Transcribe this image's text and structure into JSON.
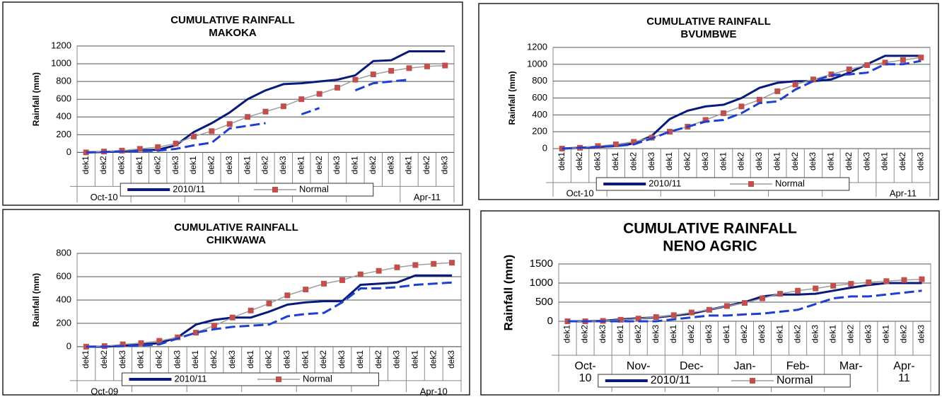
{
  "chart_data": [
    {
      "type": "line",
      "title": "CUMULATIVE RAINFALL",
      "subtitle": "MAKOKA",
      "ylabel": "Rainfall (mm)",
      "categories": [
        "dek1",
        "dek2",
        "dek3",
        "dek1",
        "dek2",
        "dek3",
        "dek1",
        "dek2",
        "dek3",
        "dek1",
        "dek2",
        "dek3",
        "dek1",
        "dek2",
        "dek3",
        "dek1",
        "dek2",
        "dek3",
        "dek1",
        "dek2",
        "dek3"
      ],
      "months": [
        "Oct-10",
        null,
        null,
        null,
        null,
        null,
        "Apr-11"
      ],
      "ylim": [
        0,
        1200
      ],
      "yticks": [
        0,
        200,
        400,
        600,
        800,
        1000,
        1200
      ],
      "grid": true,
      "series": [
        {
          "name": "2010/11",
          "color": "#0a1a7a",
          "values": [
            0,
            5,
            15,
            25,
            30,
            80,
            230,
            330,
            450,
            600,
            700,
            770,
            780,
            800,
            820,
            870,
            1030,
            1040,
            1140,
            1140,
            1140
          ]
        },
        {
          "name": "Normal",
          "color": "#9e9e9e",
          "marker": "square",
          "marker_color": "#c0504d",
          "values": [
            0,
            10,
            20,
            40,
            60,
            100,
            180,
            240,
            320,
            400,
            460,
            520,
            600,
            660,
            730,
            820,
            880,
            920,
            950,
            970,
            980
          ]
        },
        {
          "color": "#1f3fd0",
          "dash": true,
          "values": [
            0,
            5,
            10,
            15,
            20,
            40,
            80,
            110,
            270,
            300,
            330,
            null,
            430,
            500,
            null,
            700,
            780,
            800,
            820,
            null,
            1000
          ]
        }
      ]
    },
    {
      "type": "line",
      "title": "CUMULATIVE RAINFALL",
      "subtitle": "BVUMBWE",
      "ylabel": "Rainfall (mm)",
      "categories": [
        "dek1",
        "dek2",
        "dek3",
        "dek1",
        "dek2",
        "dek3",
        "dek1",
        "dek2",
        "dek3",
        "dek1",
        "dek2",
        "dek3",
        "dek1",
        "dek2",
        "dek3",
        "dek1",
        "dek2",
        "dek3",
        "dek1",
        "dek2",
        "dek3"
      ],
      "months": [
        "Oct-10",
        null,
        null,
        null,
        null,
        null,
        "Apr-11"
      ],
      "ylim": [
        0,
        1200
      ],
      "yticks": [
        0,
        200,
        400,
        600,
        800,
        1000,
        1200
      ],
      "grid": true,
      "series": [
        {
          "name": "2010/11",
          "color": "#0a1a7a",
          "values": [
            0,
            10,
            20,
            30,
            60,
            150,
            350,
            450,
            500,
            520,
            600,
            720,
            780,
            800,
            800,
            820,
            900,
            1000,
            1100,
            1100,
            1100
          ]
        },
        {
          "name": "Normal",
          "color": "#9e9e9e",
          "marker": "square",
          "marker_color": "#c0504d",
          "values": [
            0,
            10,
            30,
            50,
            80,
            130,
            200,
            260,
            340,
            420,
            500,
            580,
            680,
            760,
            820,
            880,
            940,
            990,
            1020,
            1050,
            1080
          ]
        },
        {
          "color": "#1f3fd0",
          "dash": true,
          "values": [
            0,
            10,
            20,
            30,
            50,
            120,
            200,
            260,
            320,
            340,
            420,
            540,
            560,
            700,
            800,
            870,
            880,
            900,
            1000,
            1000,
            1040
          ]
        }
      ]
    },
    {
      "type": "line",
      "title": "CUMULATIVE RAINFALL",
      "subtitle": "CHIKWAWA",
      "ylabel": "Rainfall (mm)",
      "categories": [
        "dek1",
        "dek2",
        "dek3",
        "dek1",
        "dek2",
        "dek3",
        "dek1",
        "dek2",
        "dek3",
        "dek1",
        "dek2",
        "dek3",
        "dek1",
        "dek2",
        "dek3",
        "dek1",
        "dek2",
        "dek3",
        "dek1",
        "dek2",
        "dek3"
      ],
      "months": [
        "Oct-09",
        null,
        null,
        null,
        null,
        null,
        "Apr-10"
      ],
      "ylim": [
        0,
        800
      ],
      "yticks": [
        0,
        200,
        400,
        600,
        800
      ],
      "grid": true,
      "series": [
        {
          "name": "2010/11",
          "color": "#0a1a7a",
          "values": [
            0,
            0,
            10,
            20,
            30,
            80,
            190,
            230,
            250,
            250,
            300,
            360,
            380,
            390,
            390,
            530,
            540,
            550,
            610,
            610,
            610
          ]
        },
        {
          "name": "Normal",
          "color": "#9e9e9e",
          "marker": "square",
          "marker_color": "#c0504d",
          "values": [
            0,
            5,
            20,
            30,
            50,
            80,
            120,
            180,
            250,
            310,
            370,
            440,
            490,
            540,
            570,
            620,
            650,
            680,
            700,
            710,
            720
          ]
        },
        {
          "color": "#1f3fd0",
          "dash": true,
          "values": [
            0,
            0,
            5,
            10,
            20,
            70,
            120,
            150,
            170,
            180,
            190,
            260,
            280,
            290,
            380,
            500,
            500,
            510,
            530,
            540,
            550
          ]
        }
      ]
    },
    {
      "type": "line",
      "title": "CUMULATIVE RAINFALL",
      "subtitle": "NENO AGRIC",
      "ylabel": "Rainfall (mm)",
      "categories": [
        "dek1",
        "dek2",
        "dek3",
        "dek1",
        "dek2",
        "dek3",
        "dek1",
        "dek2",
        "dek3",
        "dek1",
        "dek2",
        "dek3",
        "dek1",
        "dek2",
        "dek3",
        "dek1",
        "dek2",
        "dek3",
        "dek1",
        "dek2",
        "dek3"
      ],
      "months": [
        "Oct-10",
        "Nov-",
        "Dec-",
        "Jan-",
        "Feb-",
        "Mar-",
        "Apr-11"
      ],
      "ylim": [
        0,
        1500
      ],
      "yticks": [
        0,
        500,
        1000,
        1500
      ],
      "grid": true,
      "series": [
        {
          "name": "2010/11",
          "color": "#0a1a7a",
          "values": [
            0,
            0,
            10,
            50,
            80,
            100,
            150,
            200,
            300,
            400,
            500,
            650,
            700,
            700,
            720,
            800,
            880,
            950,
            1000,
            1000,
            1000
          ]
        },
        {
          "name": "Normal",
          "color": "#9e9e9e",
          "marker": "square",
          "marker_color": "#c0504d",
          "values": [
            0,
            0,
            10,
            40,
            70,
            110,
            160,
            230,
            300,
            400,
            480,
            600,
            720,
            800,
            860,
            930,
            980,
            1020,
            1050,
            1080,
            1100
          ]
        },
        {
          "color": "#1f3fd0",
          "dash": true,
          "values": [
            0,
            0,
            0,
            0,
            0,
            0,
            50,
            100,
            150,
            150,
            180,
            200,
            250,
            300,
            450,
            600,
            650,
            650,
            700,
            750,
            800
          ]
        }
      ]
    }
  ]
}
